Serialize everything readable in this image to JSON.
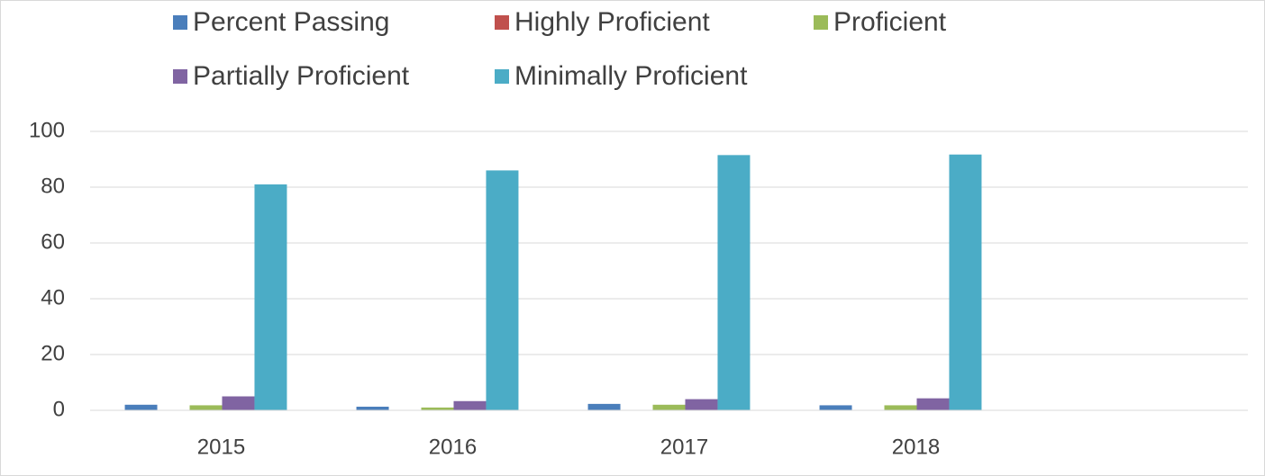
{
  "chart_data": {
    "type": "bar",
    "categories": [
      "2015",
      "2016",
      "2017",
      "2018",
      null
    ],
    "series": [
      {
        "name": "Percent Passing",
        "color": "#4a7ebb",
        "values": [
          2,
          1.3,
          2.3,
          1.8,
          null
        ]
      },
      {
        "name": "Highly Proficient",
        "color": "#c0504d",
        "values": [
          0,
          0,
          0,
          0,
          null
        ]
      },
      {
        "name": "Proficient",
        "color": "#9bbb59",
        "values": [
          1.8,
          1,
          2,
          1.8,
          null
        ]
      },
      {
        "name": "Partially Proficient",
        "color": "#8064a2",
        "values": [
          5,
          3.3,
          4,
          4.3,
          null
        ]
      },
      {
        "name": "Minimally Proficient",
        "color": "#4bacc6",
        "values": [
          81,
          86,
          91.5,
          91.7,
          null
        ]
      }
    ],
    "ylim": [
      0,
      100
    ],
    "yticks": [
      0,
      20,
      40,
      60,
      80,
      100
    ],
    "grid": true,
    "legend": "top"
  }
}
